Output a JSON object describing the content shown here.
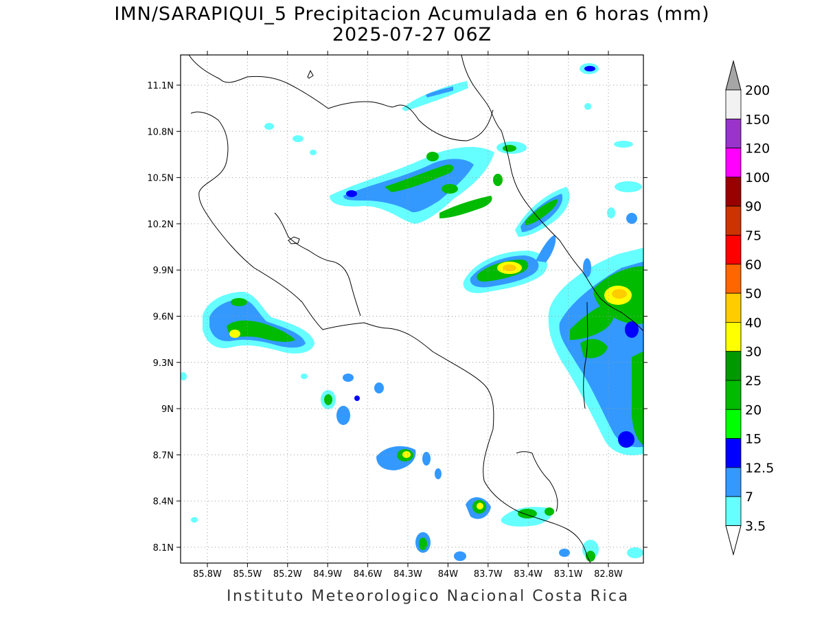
{
  "title": {
    "line1": "IMN/SARAPIQUI_5 Precipitacion Acumulada en 6 horas (mm)",
    "line2": "2025-07-27 06Z"
  },
  "footer": "Instituto Meteorologico Nacional Costa Rica",
  "map": {
    "lat_labels": [
      "11.1N",
      "10.8N",
      "10.5N",
      "10.2N",
      "9.9N",
      "9.6N",
      "9.3N",
      "9N",
      "8.7N",
      "8.4N",
      "8.1N"
    ],
    "lon_labels": [
      "85.8W",
      "85.5W",
      "85.2W",
      "84.9W",
      "84.6W",
      "84.3W",
      "84W",
      "83.7W",
      "83.4W",
      "83.1W",
      "82.8W"
    ]
  },
  "colorbar": {
    "labels": [
      "200",
      "150",
      "120",
      "100",
      "90",
      "75",
      "60",
      "50",
      "40",
      "30",
      "25",
      "20",
      "15",
      "12.5",
      "7",
      "3.5"
    ],
    "colors": [
      "#f2f2f2",
      "#9933cc",
      "#ff00ff",
      "#990000",
      "#cc3300",
      "#ff0000",
      "#ff6600",
      "#ffcc00",
      "#ffff00",
      "#009900",
      "#00bb00",
      "#00ff00",
      "#0000ff",
      "#3399ff",
      "#66ffff"
    ],
    "over_color": "#a6a6a6"
  }
}
